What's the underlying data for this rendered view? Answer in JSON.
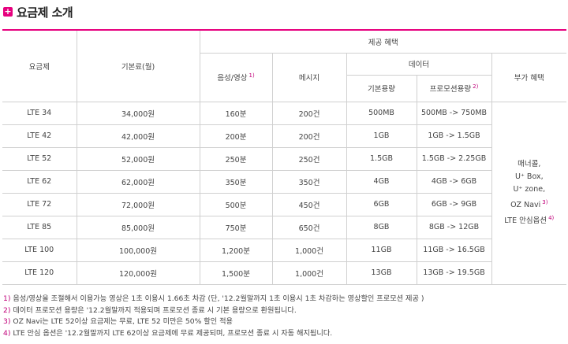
{
  "title": "요금제 소개",
  "header": {
    "plan": "요금제",
    "base_fee": "기본료(월)",
    "benefits": "제공 혜택",
    "voice": "음성/영상",
    "voice_fn": "1)",
    "message": "메시지",
    "data": "데이터",
    "base_data": "기본용량",
    "promo_data": "프로모션용량",
    "promo_fn": "2)",
    "extras": "부가 혜택"
  },
  "rows": [
    {
      "plan": "LTE 34",
      "fee": "34,000원",
      "voice": "160분",
      "msg": "200건",
      "base": "500MB",
      "promo": "500MB -> 750MB"
    },
    {
      "plan": "LTE 42",
      "fee": "42,000원",
      "voice": "200분",
      "msg": "200건",
      "base": "1GB",
      "promo": "1GB -> 1.5GB"
    },
    {
      "plan": "LTE 52",
      "fee": "52,000원",
      "voice": "250분",
      "msg": "250건",
      "base": "1.5GB",
      "promo": "1.5GB -> 2.25GB"
    },
    {
      "plan": "LTE 62",
      "fee": "62,000원",
      "voice": "350분",
      "msg": "350건",
      "base": "4GB",
      "promo": "4GB -> 6GB"
    },
    {
      "plan": "LTE 72",
      "fee": "72,000원",
      "voice": "500분",
      "msg": "450건",
      "base": "6GB",
      "promo": "6GB -> 9GB"
    },
    {
      "plan": "LTE 85",
      "fee": "85,000원",
      "voice": "750분",
      "msg": "650건",
      "base": "8GB",
      "promo": "8GB -> 12GB"
    },
    {
      "plan": "LTE 100",
      "fee": "100,000원",
      "voice": "1,200분",
      "msg": "1,000건",
      "base": "11GB",
      "promo": "11GB -> 16.5GB"
    },
    {
      "plan": "LTE 120",
      "fee": "120,000원",
      "voice": "1,500분",
      "msg": "1,000건",
      "base": "13GB",
      "promo": "13GB -> 19.5GB"
    }
  ],
  "extras": {
    "line1": "매너콜,",
    "line2": "U⁺ Box,",
    "line3": "U⁺ zone,",
    "line4": "OZ Navi",
    "line4_fn": "3)",
    "line5": "LTE 안심옵션",
    "line5_fn": "4)"
  },
  "notes": [
    {
      "num": "1)",
      "text": "음성/영상을 조절해서 이용가능 영상은 1초 이용시 1.66초 차감 (단, '12.2월말까지 1초 이용시 1초 차감하는 영상할인 프로모션 제공 )"
    },
    {
      "num": "2)",
      "text": "데이터 프로모션 용량은 '12.2월말까지 적용되며 프로모션 종료 시 기본 용량으로 환원됩니다."
    },
    {
      "num": "3)",
      "text": "OZ Navi는 LTE 52이상 요금제는 무료, LTE 52 미만은 50% 할인 적용"
    },
    {
      "num": "4)",
      "text": "LTE 안심 옵션은 '12.2월말까지 LTE 62이상 요금제에 무료 제공되며, 프로모션 종료 시 자동 해지됩니다."
    }
  ],
  "colors": {
    "accent": "#e6007e",
    "border": "#d0d0d0"
  }
}
